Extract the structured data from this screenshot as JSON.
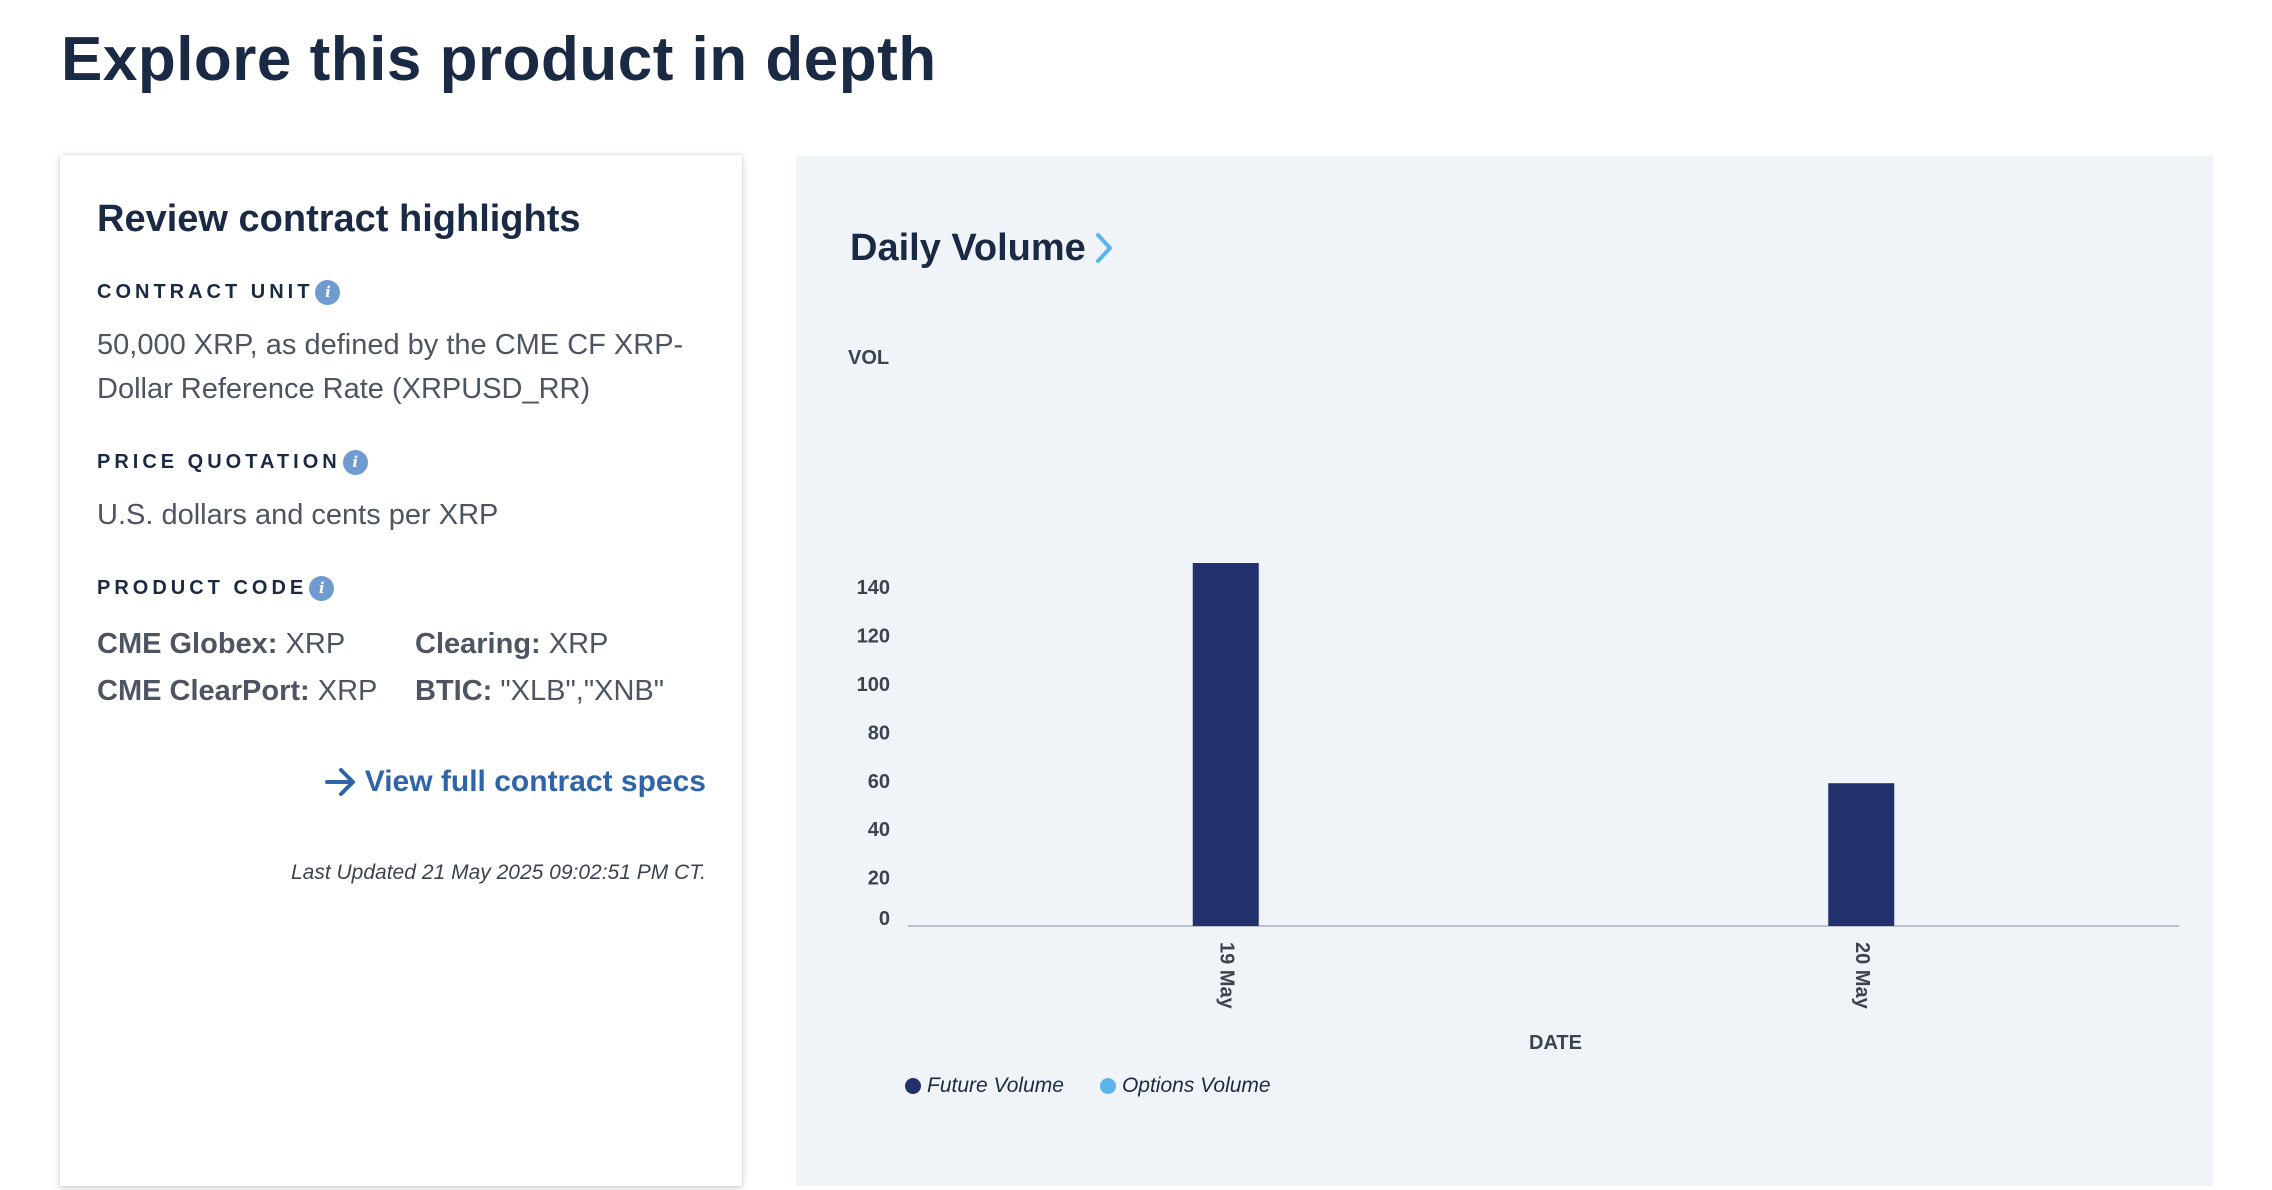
{
  "page": {
    "title": "Explore this product in depth"
  },
  "highlights": {
    "title": "Review contract highlights",
    "contract_unit": {
      "label": "CONTRACT UNIT",
      "value": "50,000 XRP, as defined by the CME CF XRP-Dollar Reference Rate (XRPUSD_RR)"
    },
    "price_quotation": {
      "label": "PRICE QUOTATION",
      "value": "U.S. dollars and cents per XRP"
    },
    "product_code": {
      "label": "PRODUCT CODE",
      "globex_label": "CME Globex:",
      "globex_value": "XRP",
      "clearing_label": "Clearing:",
      "clearing_value": "XRP",
      "clearport_label": "CME ClearPort:",
      "clearport_value": "XRP",
      "btic_label": "BTIC:",
      "btic_value": "\"XLB\",\"XNB\""
    },
    "info_glyph": "i",
    "specs_link": "View full contract specs",
    "last_updated_label": "Last Updated",
    "last_updated_value": "21 May 2025 09:02:51 PM CT."
  },
  "icons": {
    "info": "info-icon",
    "arrow": "arrow-right-icon",
    "chevron": "chevron-right-icon"
  },
  "colors": {
    "future": "#23306e",
    "options": "#5bb4ea",
    "link": "#2e65a8",
    "panel_bg": "#f0f4f8"
  },
  "chart_data": {
    "type": "bar",
    "title": "Daily Volume",
    "ylabel": "VOL",
    "xlabel": "DATE",
    "categories": [
      "19 May",
      "20 May"
    ],
    "series": [
      {
        "name": "Future Volume",
        "values": [
          150,
          59
        ]
      },
      {
        "name": "Options Volume",
        "values": [
          0,
          0
        ]
      }
    ],
    "yticks": [
      0,
      20,
      40,
      60,
      80,
      100,
      120,
      140
    ],
    "ylim": [
      0,
      150
    ],
    "legend": "bottom-left"
  }
}
